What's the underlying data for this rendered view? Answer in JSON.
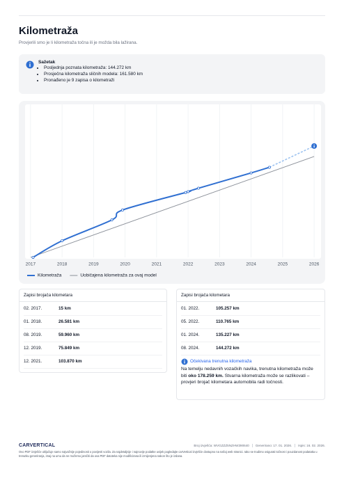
{
  "header": {
    "title": "Kilometraža",
    "subtitle": "Provjerili smo je li kilometraža točna ili je možda bila lažirana."
  },
  "summary": {
    "title": "Sažetak",
    "items": [
      "Posljednja poznata kilometraža: 144.272 km",
      "Prosječna kilometraža sličnih modela: 161.580 km",
      "Pronađeno je 9 zapisa o kilometraži"
    ]
  },
  "chart_data": {
    "type": "line",
    "xlim": [
      2016.87,
      2026.13
    ],
    "xticks": [
      2017,
      2018,
      2019,
      2020,
      2021,
      2022,
      2023,
      2024,
      2025,
      2026
    ],
    "ylim": [
      0,
      245000
    ],
    "grid": true,
    "series": [
      {
        "name": "Kilometraža",
        "color": "#2f6fd1",
        "x": [
          2017.08,
          2018.0,
          2019.58,
          2019.92,
          2021.92,
          2022.0,
          2022.33,
          2024.0,
          2024.58
        ],
        "values": [
          15,
          26581,
          59960,
          75849,
          103870,
          105257,
          110765,
          135227,
          144272
        ]
      },
      {
        "name": "Uobičajena kilometraža za ovaj model",
        "color": "#8a8f98",
        "x": [
          2017.0,
          2026.0
        ],
        "values": [
          0,
          161580
        ]
      }
    ],
    "projection": {
      "color": "#9cc2f0",
      "x": [
        2024.58,
        2026.0
      ],
      "values": [
        144272,
        178259
      ]
    }
  },
  "tables": [
    {
      "title": "Zapisi brojača kilometara",
      "rows": [
        [
          "02. 2017.",
          "15 km"
        ],
        [
          "01. 2018.",
          "26.581 km"
        ],
        [
          "08. 2019.",
          "59.960 km"
        ],
        [
          "12. 2019.",
          "75.849 km"
        ],
        [
          "12. 2021.",
          "103.870 km"
        ]
      ]
    },
    {
      "title": "Zapisi brojača kilometara",
      "rows": [
        [
          "01. 2022.",
          "105.257 km"
        ],
        [
          "05. 2022.",
          "110.765 km"
        ],
        [
          "01. 2024.",
          "135.227 km"
        ],
        [
          "08. 2024.",
          "144.272 km"
        ]
      ]
    }
  ],
  "expected": {
    "title": "Očekivana trenutna kilometraža",
    "text": [
      "Na temelju nedavnih vozačkih navika, trenutna kilometraža može biti ",
      "oko 178.259 km.",
      " Stvarna kilometraža može se razlikovati – provjeri brojač kilometara automobila radi točnosti."
    ]
  },
  "footer": {
    "logo": "CARVERTICAL",
    "report": "Broj izvješća: WVGZZZ5NZHW390640",
    "generated": "Generirano: 17. 01. 2026.",
    "printed": "Ispis: 16. 02. 2026.",
    "disclaimer": "Ovo PDF izvješće uključuje samo najvažnije pojedinosti o povijesti vozila. Za najdetaljnije i najnovije podatke uvijek pogledajte carVertical izvješće dostupno na našoj web stranici. Iako se trudimo osigurati točnost i pouzdanost podataka u trenutku generiranja, imaj na umu da ne možemo jamčiti da ova PDF datoteka nije modificirana ili izmijenjena nakon što je izdana."
  }
}
